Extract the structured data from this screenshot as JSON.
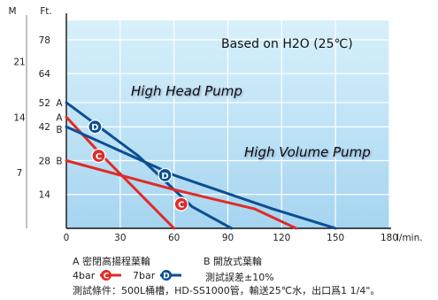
{
  "chart_data": {
    "type": "line",
    "xlabel": "l/min.",
    "ylabel_left": "M",
    "ylabel_right": "Ft.",
    "xlim": [
      0,
      180
    ],
    "ylim_ft": [
      0,
      86
    ],
    "x_ticks": [
      0,
      30,
      60,
      90,
      120,
      150,
      180
    ],
    "ft_ticks": [
      14,
      28,
      42,
      52,
      64,
      78
    ],
    "m_ticks": [
      7,
      14,
      21
    ],
    "annotations": {
      "based_on": "Based on H2O (25℃)",
      "high_head": "High Head Pump",
      "high_volume": "High Volume Pump"
    },
    "point_labels": [
      {
        "label": "A",
        "at_ft": 52
      },
      {
        "label": "A",
        "at_ft": 46
      },
      {
        "label": "B",
        "at_ft": 41
      },
      {
        "label": "B",
        "at_ft": 28
      }
    ],
    "series": [
      {
        "name": "A 7bar",
        "color": "#0b4f93",
        "marker": "D",
        "points": [
          [
            0,
            52
          ],
          [
            40,
            30
          ],
          [
            70,
            9
          ],
          [
            92,
            0
          ]
        ]
      },
      {
        "name": "A 4bar",
        "color": "#e02b27",
        "marker": "C",
        "points": [
          [
            0,
            46
          ],
          [
            20,
            30
          ],
          [
            60,
            0
          ]
        ]
      },
      {
        "name": "B 7bar",
        "color": "#0b4f93",
        "marker": "D",
        "points": [
          [
            0,
            42
          ],
          [
            60,
            22
          ],
          [
            115,
            8
          ],
          [
            150,
            0
          ]
        ]
      },
      {
        "name": "B 4bar",
        "color": "#e02b27",
        "marker": "C",
        "points": [
          [
            0,
            28
          ],
          [
            60,
            16
          ],
          [
            105,
            8
          ],
          [
            128,
            0
          ]
        ]
      }
    ],
    "markers": [
      {
        "letter": "D",
        "color": "#0b4f93",
        "x": 16,
        "ft": 42
      },
      {
        "letter": "C",
        "color": "#e02b27",
        "x": 18,
        "ft": 30
      },
      {
        "letter": "D",
        "color": "#0b4f93",
        "x": 55,
        "ft": 22
      },
      {
        "letter": "C",
        "color": "#e02b27",
        "x": 64,
        "ft": 10
      }
    ]
  },
  "footer": {
    "line1_a": "A 密閉高揚程葉輪",
    "line1_b": "B 開放式葉輪",
    "line2_c_label": "4bar",
    "line2_c_badge": "C",
    "line2_d_label": "7bar",
    "line2_d_badge": "D",
    "line2_tolerance": "測試誤差±10%",
    "line3": "測試條件：500L桶槽，HD-SS1000管，輸送25℃水，出口爲1 1/4\"。"
  }
}
